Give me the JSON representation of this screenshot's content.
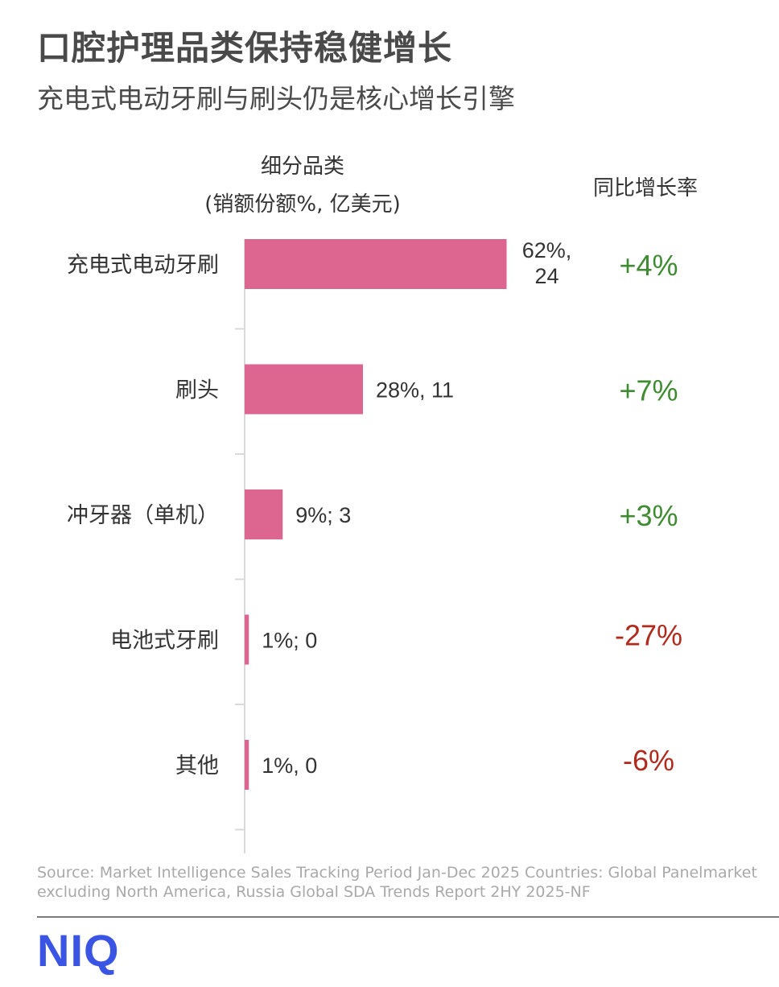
{
  "header": {
    "title": "口腔护理品类保持稳健增长",
    "subtitle": "充电式电动牙刷与刷头仍是核心增长引擎"
  },
  "columns": {
    "category_head_line1": "细分品类",
    "category_head_line2": "(销额份额%, 亿美元)",
    "growth_head": "同比增长率"
  },
  "chart_data": {
    "type": "bar",
    "orientation": "horizontal",
    "categories": [
      "充电式电动牙刷",
      "刷头",
      "冲牙器（单机）",
      "电池式牙刷",
      "其他"
    ],
    "values": [
      62,
      28,
      9,
      1,
      1
    ],
    "value_unit": "%",
    "data_labels": [
      "62%,\n24",
      "28%, 11",
      "9%; 3",
      "1%; 0",
      "1%, 0"
    ],
    "growth_labels": [
      "+4%",
      "+7%",
      "+3%",
      "-27%",
      "-6%"
    ],
    "growth_values": [
      4,
      7,
      3,
      -27,
      -6
    ],
    "bar_color": "#dc6690",
    "positive_color": "#3f8b32",
    "negative_color": "#b02a1d",
    "axis_color": "#d9d9d9"
  },
  "footer": {
    "source": "Source: Market Intelligence Sales Tracking Period Jan-Dec 2025 Countries: Global Panelmarket excluding North America, Russia Global SDA Trends Report 2HY 2025-NF",
    "logo_text": "NIQ",
    "logo_color": "#3a55e4"
  }
}
